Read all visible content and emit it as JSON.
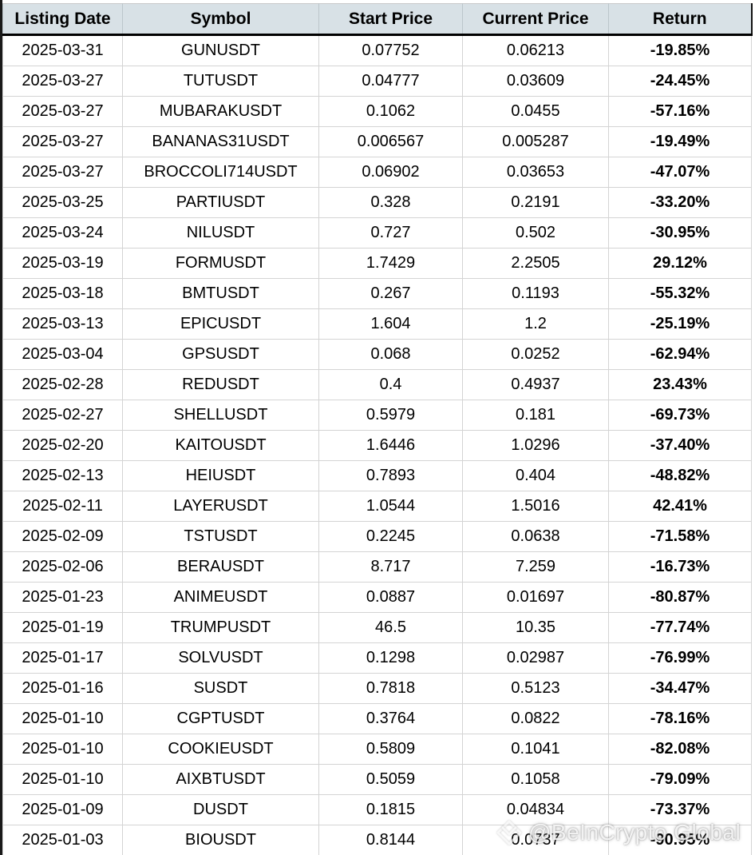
{
  "table": {
    "columns": [
      "Listing Date",
      "Symbol",
      "Start Price",
      "Current Price",
      "Return"
    ],
    "rows": [
      {
        "date": "2025-03-31",
        "symbol": "GUNUSDT",
        "start": "0.07752",
        "current": "0.06213",
        "return": "-19.85%",
        "direction": "down"
      },
      {
        "date": "2025-03-27",
        "symbol": "TUTUSDT",
        "start": "0.04777",
        "current": "0.03609",
        "return": "-24.45%",
        "direction": "down"
      },
      {
        "date": "2025-03-27",
        "symbol": "MUBARAKUSDT",
        "start": "0.1062",
        "current": "0.0455",
        "return": "-57.16%",
        "direction": "down"
      },
      {
        "date": "2025-03-27",
        "symbol": "BANANAS31USDT",
        "start": "0.006567",
        "current": "0.005287",
        "return": "-19.49%",
        "direction": "down"
      },
      {
        "date": "2025-03-27",
        "symbol": "BROCCOLI714USDT",
        "start": "0.06902",
        "current": "0.03653",
        "return": "-47.07%",
        "direction": "down"
      },
      {
        "date": "2025-03-25",
        "symbol": "PARTIUSDT",
        "start": "0.328",
        "current": "0.2191",
        "return": "-33.20%",
        "direction": "down"
      },
      {
        "date": "2025-03-24",
        "symbol": "NILUSDT",
        "start": "0.727",
        "current": "0.502",
        "return": "-30.95%",
        "direction": "down"
      },
      {
        "date": "2025-03-19",
        "symbol": "FORMUSDT",
        "start": "1.7429",
        "current": "2.2505",
        "return": "29.12%",
        "direction": "up"
      },
      {
        "date": "2025-03-18",
        "symbol": "BMTUSDT",
        "start": "0.267",
        "current": "0.1193",
        "return": "-55.32%",
        "direction": "down"
      },
      {
        "date": "2025-03-13",
        "symbol": "EPICUSDT",
        "start": "1.604",
        "current": "1.2",
        "return": "-25.19%",
        "direction": "down"
      },
      {
        "date": "2025-03-04",
        "symbol": "GPSUSDT",
        "start": "0.068",
        "current": "0.0252",
        "return": "-62.94%",
        "direction": "down"
      },
      {
        "date": "2025-02-28",
        "symbol": "REDUSDT",
        "start": "0.4",
        "current": "0.4937",
        "return": "23.43%",
        "direction": "up"
      },
      {
        "date": "2025-02-27",
        "symbol": "SHELLUSDT",
        "start": "0.5979",
        "current": "0.181",
        "return": "-69.73%",
        "direction": "down"
      },
      {
        "date": "2025-02-20",
        "symbol": "KAITOUSDT",
        "start": "1.6446",
        "current": "1.0296",
        "return": "-37.40%",
        "direction": "down"
      },
      {
        "date": "2025-02-13",
        "symbol": "HEIUSDT",
        "start": "0.7893",
        "current": "0.404",
        "return": "-48.82%",
        "direction": "down"
      },
      {
        "date": "2025-02-11",
        "symbol": "LAYERUSDT",
        "start": "1.0544",
        "current": "1.5016",
        "return": "42.41%",
        "direction": "up"
      },
      {
        "date": "2025-02-09",
        "symbol": "TSTUSDT",
        "start": "0.2245",
        "current": "0.0638",
        "return": "-71.58%",
        "direction": "down"
      },
      {
        "date": "2025-02-06",
        "symbol": "BERAUSDT",
        "start": "8.717",
        "current": "7.259",
        "return": "-16.73%",
        "direction": "down"
      },
      {
        "date": "2025-01-23",
        "symbol": "ANIMEUSDT",
        "start": "0.0887",
        "current": "0.01697",
        "return": "-80.87%",
        "direction": "down"
      },
      {
        "date": "2025-01-19",
        "symbol": "TRUMPUSDT",
        "start": "46.5",
        "current": "10.35",
        "return": "-77.74%",
        "direction": "down"
      },
      {
        "date": "2025-01-17",
        "symbol": "SOLVUSDT",
        "start": "0.1298",
        "current": "0.02987",
        "return": "-76.99%",
        "direction": "down"
      },
      {
        "date": "2025-01-16",
        "symbol": "SUSDT",
        "start": "0.7818",
        "current": "0.5123",
        "return": "-34.47%",
        "direction": "down"
      },
      {
        "date": "2025-01-10",
        "symbol": "CGPTUSDT",
        "start": "0.3764",
        "current": "0.0822",
        "return": "-78.16%",
        "direction": "down"
      },
      {
        "date": "2025-01-10",
        "symbol": "COOKIEUSDT",
        "start": "0.5809",
        "current": "0.1041",
        "return": "-82.08%",
        "direction": "down"
      },
      {
        "date": "2025-01-10",
        "symbol": "AIXBTUSDT",
        "start": "0.5059",
        "current": "0.1058",
        "return": "-79.09%",
        "direction": "down"
      },
      {
        "date": "2025-01-09",
        "symbol": "DUSDT",
        "start": "0.1815",
        "current": "0.04834",
        "return": "-73.37%",
        "direction": "down"
      },
      {
        "date": "2025-01-03",
        "symbol": "BIOUSDT",
        "start": "0.8144",
        "current": "0.0737",
        "return": "-90.95%",
        "direction": "down"
      }
    ]
  },
  "watermark": {
    "handle": "@BeInCrypto Global",
    "logo_icon": "beincrypto-logo"
  },
  "colors": {
    "header_bg": "#d8e1e6",
    "negative_bg": "#f2cfcb",
    "negative_text": "#b0382d",
    "positive_bg": "#e3f0dc",
    "positive_text": "#3e7b36"
  }
}
